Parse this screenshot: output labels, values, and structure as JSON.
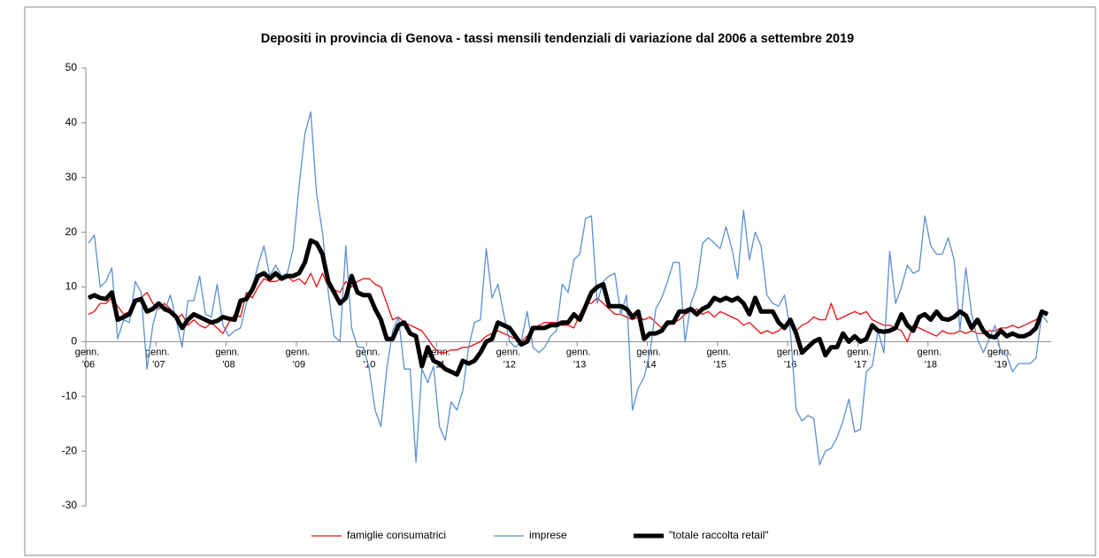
{
  "chart_data": {
    "type": "line",
    "title": "Depositi in provincia di Genova - tassi mensili tendenziali di variazione dal 2006  a settembre 2019",
    "categories": [
      "genn. '06",
      null,
      null,
      null,
      null,
      null,
      null,
      null,
      null,
      null,
      null,
      null,
      "genn. '07",
      null,
      null,
      null,
      null,
      null,
      null,
      null,
      null,
      null,
      null,
      null,
      "genn. '08",
      null,
      null,
      null,
      null,
      null,
      null,
      null,
      null,
      null,
      null,
      null,
      "genn. '09",
      null,
      null,
      null,
      null,
      null,
      null,
      null,
      null,
      null,
      null,
      null,
      "genn. '10",
      null,
      null,
      null,
      null,
      null,
      null,
      null,
      null,
      null,
      null,
      null,
      "genn. '11",
      null,
      null,
      null,
      null,
      null,
      null,
      null,
      null,
      null,
      null,
      null,
      "genn. '12",
      null,
      null,
      null,
      null,
      null,
      null,
      null,
      null,
      null,
      null,
      null,
      "genn. '13",
      null,
      null,
      null,
      null,
      null,
      null,
      null,
      null,
      null,
      null,
      null,
      "genn. '14",
      null,
      null,
      null,
      null,
      null,
      null,
      null,
      null,
      null,
      null,
      null,
      "genn. '15",
      null,
      null,
      null,
      null,
      null,
      null,
      null,
      null,
      null,
      null,
      null,
      "genn. '16",
      null,
      null,
      null,
      null,
      null,
      null,
      null,
      null,
      null,
      null,
      null,
      "genn. '17",
      null,
      null,
      null,
      null,
      null,
      null,
      null,
      null,
      null,
      null,
      null,
      "genn. '18",
      null,
      null,
      null,
      null,
      null,
      null,
      null,
      null,
      null,
      null,
      null,
      "genn. '19",
      null,
      null,
      null,
      null,
      null,
      null,
      null,
      null
    ],
    "series": [
      {
        "name": "famiglie consumatrici",
        "color": "#e81010",
        "line_width": 1.3,
        "values": [
          5,
          5.5,
          7,
          7,
          8,
          6.5,
          5,
          5.5,
          7,
          8,
          9,
          7,
          6,
          7,
          6,
          4,
          5,
          3,
          4,
          3,
          2.5,
          3.5,
          2.5,
          1.5,
          3.5,
          5,
          4.5,
          9,
          8,
          10,
          11.5,
          11,
          11,
          11.5,
          12,
          11,
          11.5,
          10.5,
          12.5,
          10,
          12.5,
          10,
          9.5,
          9,
          11,
          10,
          11,
          11.5,
          11.5,
          10.5,
          10,
          7,
          4,
          4.5,
          3.5,
          3,
          2.5,
          2,
          0.5,
          -1,
          -2,
          -2,
          -1.5,
          -1.5,
          -1,
          -1,
          -0.5,
          0,
          1,
          1.5,
          2,
          1.5,
          1,
          0.5,
          0,
          1,
          2,
          3,
          3.5,
          3.5,
          3.5,
          3,
          3,
          2.5,
          5,
          7,
          7,
          8,
          7,
          6,
          5,
          5,
          4.5,
          4,
          4.5,
          4,
          4.5,
          3.5,
          2.5,
          3,
          3.5,
          4,
          5,
          5.5,
          6,
          5,
          5.5,
          4.5,
          5.5,
          5,
          4.5,
          4,
          3,
          3.5,
          2.5,
          1.5,
          2,
          1.5,
          2,
          3,
          3,
          2,
          3,
          3.5,
          4.5,
          4,
          4,
          7,
          4,
          4.5,
          5,
          5.5,
          5,
          5.5,
          4,
          3.5,
          3,
          3,
          2.5,
          2,
          0,
          3,
          2.5,
          2,
          1.5,
          1,
          2,
          1.5,
          1.5,
          2,
          1.5,
          2,
          1.5,
          1.5,
          2,
          2,
          2.5,
          2.5,
          3,
          2.5,
          3,
          3.5,
          4,
          5,
          5.5
        ]
      },
      {
        "name": "imprese",
        "color": "#5b8fd0",
        "line_width": 1.3,
        "values": [
          18,
          19.5,
          10,
          11,
          13.5,
          0.5,
          4,
          3.5,
          11,
          9,
          -5,
          3,
          7,
          5.5,
          8.5,
          4,
          -1,
          7.5,
          7.5,
          12,
          5,
          4.5,
          10.5,
          3,
          1,
          2,
          2.5,
          7,
          10,
          14,
          17.5,
          12,
          14,
          12,
          12.5,
          17,
          28.5,
          38,
          42,
          27,
          20,
          9,
          1,
          0,
          17.5,
          2.5,
          -1,
          -1,
          -5,
          -12.5,
          -15.5,
          -5,
          2,
          4.5,
          -5,
          -5,
          -22,
          -5,
          -7.5,
          -4.5,
          -15.5,
          -18,
          -11,
          -12.5,
          -9,
          -1,
          3.5,
          4,
          17,
          8,
          10.5,
          5,
          0,
          -1,
          0,
          5.5,
          -1,
          -2,
          -1,
          1,
          2,
          10.5,
          9,
          15,
          16,
          22.5,
          23,
          7,
          11,
          12,
          12.5,
          5,
          8.5,
          -12.5,
          -8.5,
          -6.5,
          -2,
          6,
          8,
          11,
          14.5,
          14.5,
          0,
          7,
          10,
          18,
          19,
          18,
          17,
          21,
          17,
          11.5,
          24,
          15,
          20,
          17.5,
          8.5,
          7,
          6.5,
          8.5,
          2,
          -12.5,
          -14.5,
          -13.5,
          -14,
          -22.5,
          -20,
          -19.5,
          -17.5,
          -14.5,
          -10.5,
          -16.5,
          -16,
          -5.5,
          -4.5,
          2,
          -2,
          16.5,
          7,
          10,
          14,
          12.5,
          13,
          23,
          17.5,
          16,
          16,
          19,
          15,
          2,
          13.5,
          5,
          0.5,
          -2,
          0.5,
          3,
          -2,
          -2.5,
          -5.5,
          -4,
          -4,
          -4,
          -3,
          5,
          3.5
        ]
      },
      {
        "name": "\"totale raccolta retail\"",
        "color": "#000000",
        "line_width": 5,
        "values": [
          8,
          8.5,
          8,
          7.8,
          9,
          4,
          4.5,
          5,
          7.5,
          7.8,
          5.5,
          6,
          7,
          6,
          5.5,
          4.5,
          2.5,
          4,
          5,
          4.5,
          4,
          3.5,
          3.8,
          4.5,
          4.2,
          4,
          7.5,
          7.8,
          9.5,
          12,
          12.5,
          11.5,
          12.5,
          11.5,
          12,
          12,
          12.5,
          14.5,
          18.5,
          18,
          16,
          11,
          9,
          7,
          8,
          12,
          9,
          8.5,
          8.5,
          6,
          4,
          0.5,
          0.5,
          3,
          3.5,
          1.5,
          1,
          -4.5,
          -1,
          -3.5,
          -4,
          -5,
          -5.5,
          -6,
          -3.5,
          -4,
          -3.5,
          -2,
          0,
          0.5,
          3.5,
          3,
          2.5,
          1,
          -0.5,
          0,
          2.5,
          2.5,
          2.5,
          3,
          3,
          3.5,
          3.5,
          5,
          4,
          6.5,
          9,
          10,
          10.5,
          6.5,
          6.5,
          6.5,
          6,
          4.5,
          5.5,
          0.5,
          1.5,
          1.5,
          2,
          3.5,
          3.5,
          5.5,
          5.5,
          6,
          5,
          6,
          6.5,
          8,
          7.5,
          8,
          7.5,
          8,
          7,
          5,
          8,
          5.5,
          5.5,
          5.5,
          3.5,
          2.5,
          4,
          1.5,
          -2,
          -1,
          0,
          0.5,
          -2.5,
          -1,
          -1,
          1.5,
          0,
          1,
          0,
          0.5,
          3,
          2,
          1.8,
          2,
          2.5,
          5,
          3,
          2,
          4.5,
          5,
          4,
          5.5,
          4.2,
          4,
          4.5,
          5.5,
          4.8,
          2.5,
          4,
          2,
          1,
          0.8,
          2,
          1,
          1.5,
          1,
          1,
          1.5,
          2.5,
          5.5,
          5
        ]
      }
    ],
    "ylim": [
      -30,
      50
    ],
    "yticks": [
      -30,
      -20,
      -10,
      0,
      10,
      20,
      30,
      40,
      50
    ],
    "grid": false,
    "legend": "bottom"
  }
}
